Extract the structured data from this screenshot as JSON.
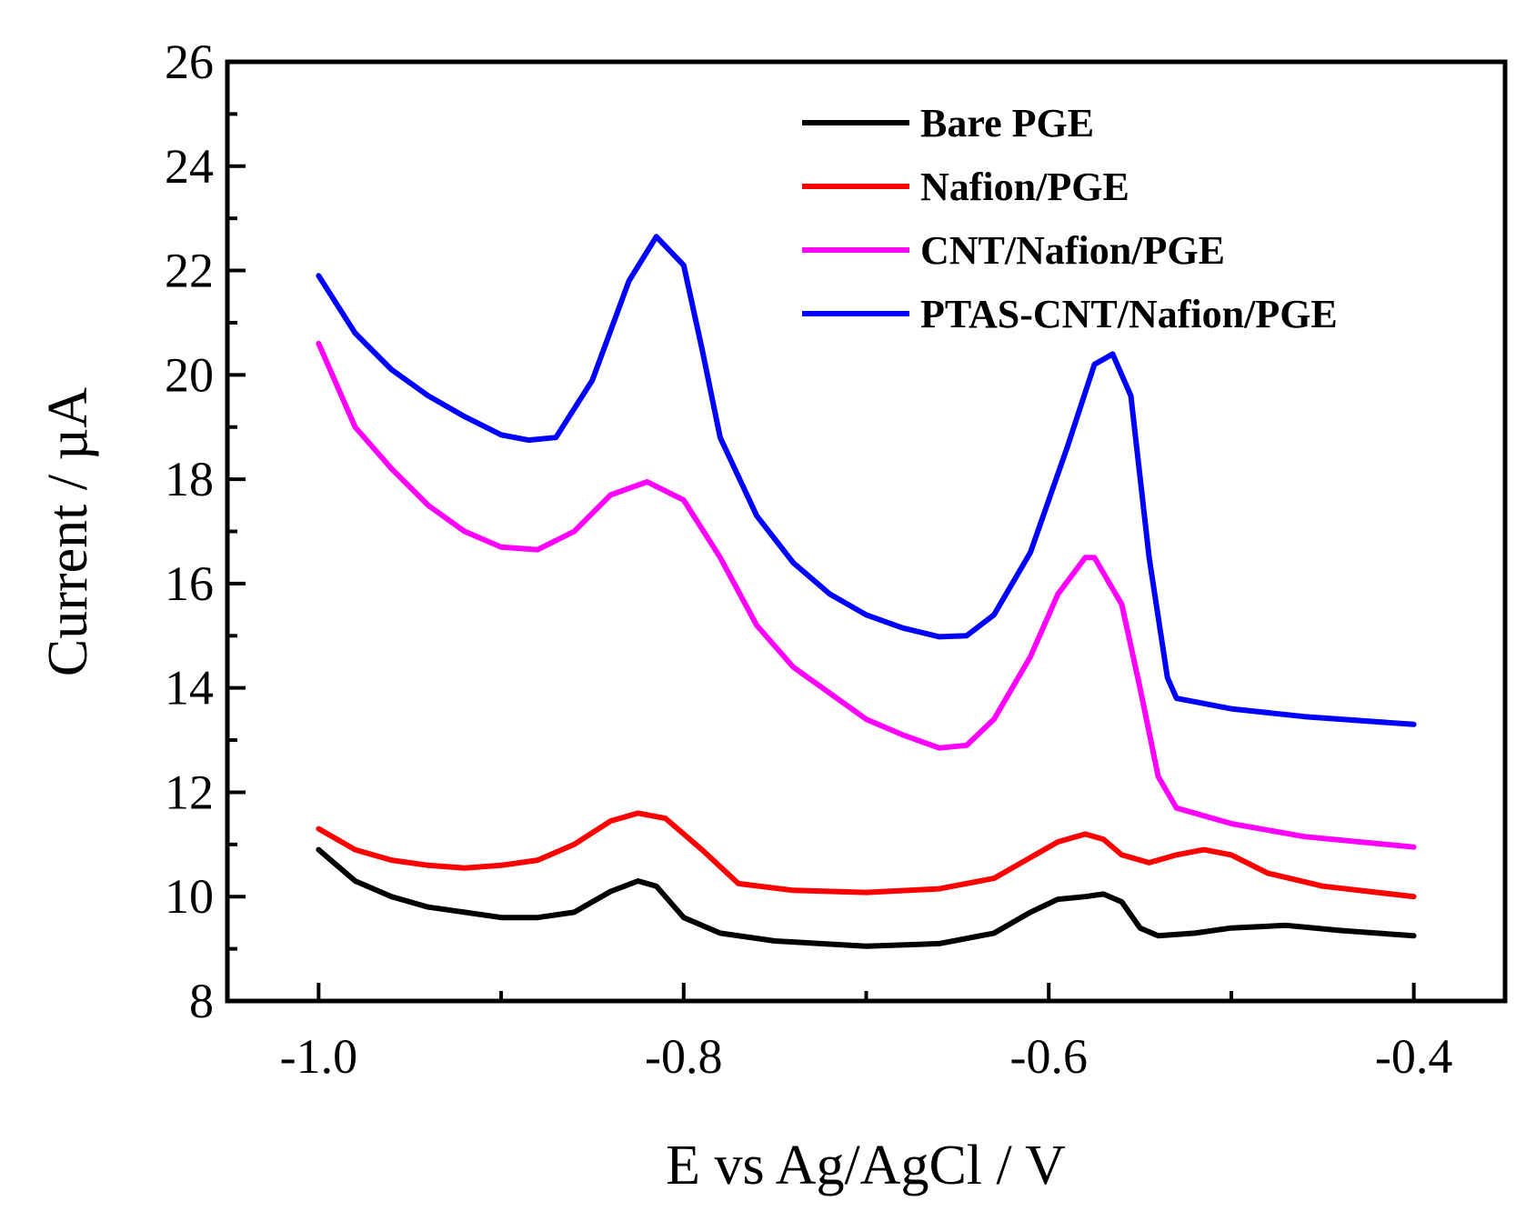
{
  "chart_data": {
    "type": "line",
    "title": "",
    "xlabel": "E vs Ag/AgCl / V",
    "ylabel": "Current / µA",
    "xlim": [
      -1.05,
      -0.35
    ],
    "ylim": [
      8,
      26
    ],
    "xticks": [
      -1.0,
      -0.8,
      -0.6,
      -0.4
    ],
    "xtick_labels": [
      "-1.0",
      "-0.8",
      "-0.6",
      "-0.4"
    ],
    "yticks": [
      8,
      10,
      12,
      14,
      16,
      18,
      20,
      22,
      24,
      26
    ],
    "ytick_labels": [
      "8",
      "10",
      "12",
      "14",
      "16",
      "18",
      "20",
      "22",
      "24",
      "26"
    ],
    "grid": false,
    "legend_position": "top-right",
    "series": [
      {
        "name": "Bare PGE",
        "color": "#000000",
        "x": [
          -1.0,
          -0.98,
          -0.96,
          -0.94,
          -0.92,
          -0.9,
          -0.88,
          -0.86,
          -0.84,
          -0.825,
          -0.815,
          -0.8,
          -0.78,
          -0.75,
          -0.7,
          -0.66,
          -0.63,
          -0.61,
          -0.595,
          -0.58,
          -0.57,
          -0.56,
          -0.55,
          -0.54,
          -0.52,
          -0.5,
          -0.47,
          -0.44,
          -0.4
        ],
        "values": [
          10.9,
          10.3,
          10.0,
          9.8,
          9.7,
          9.6,
          9.6,
          9.7,
          10.1,
          10.3,
          10.2,
          9.6,
          9.3,
          9.15,
          9.05,
          9.1,
          9.3,
          9.7,
          9.95,
          10.0,
          10.05,
          9.9,
          9.4,
          9.25,
          9.3,
          9.4,
          9.45,
          9.35,
          9.25
        ]
      },
      {
        "name": "Nafion/PGE",
        "color": "#ff0000",
        "x": [
          -1.0,
          -0.98,
          -0.96,
          -0.94,
          -0.92,
          -0.9,
          -0.88,
          -0.86,
          -0.84,
          -0.825,
          -0.81,
          -0.79,
          -0.77,
          -0.74,
          -0.7,
          -0.66,
          -0.63,
          -0.61,
          -0.595,
          -0.58,
          -0.57,
          -0.56,
          -0.545,
          -0.53,
          -0.515,
          -0.5,
          -0.48,
          -0.45,
          -0.4
        ],
        "values": [
          11.3,
          10.9,
          10.7,
          10.6,
          10.55,
          10.6,
          10.7,
          11.0,
          11.45,
          11.6,
          11.5,
          10.9,
          10.25,
          10.12,
          10.08,
          10.15,
          10.35,
          10.75,
          11.05,
          11.2,
          11.1,
          10.8,
          10.65,
          10.8,
          10.9,
          10.8,
          10.45,
          10.2,
          10.0
        ]
      },
      {
        "name": "CNT/Nafion/PGE",
        "color": "#ff00ff",
        "x": [
          -1.0,
          -0.98,
          -0.96,
          -0.94,
          -0.92,
          -0.9,
          -0.88,
          -0.86,
          -0.84,
          -0.82,
          -0.8,
          -0.78,
          -0.76,
          -0.74,
          -0.72,
          -0.7,
          -0.68,
          -0.66,
          -0.645,
          -0.63,
          -0.61,
          -0.595,
          -0.58,
          -0.575,
          -0.56,
          -0.55,
          -0.54,
          -0.53,
          -0.5,
          -0.46,
          -0.4
        ],
        "values": [
          20.6,
          19.0,
          18.2,
          17.5,
          17.0,
          16.7,
          16.65,
          17.0,
          17.7,
          17.95,
          17.6,
          16.5,
          15.2,
          14.4,
          13.9,
          13.4,
          13.1,
          12.85,
          12.9,
          13.4,
          14.6,
          15.8,
          16.5,
          16.5,
          15.6,
          14.0,
          12.3,
          11.7,
          11.4,
          11.15,
          10.95
        ]
      },
      {
        "name": "PTAS-CNT/Nafion/PGE",
        "color": "#0000ff",
        "x": [
          -1.0,
          -0.98,
          -0.96,
          -0.94,
          -0.92,
          -0.9,
          -0.885,
          -0.87,
          -0.85,
          -0.83,
          -0.815,
          -0.8,
          -0.79,
          -0.78,
          -0.76,
          -0.74,
          -0.72,
          -0.7,
          -0.68,
          -0.66,
          -0.645,
          -0.63,
          -0.61,
          -0.59,
          -0.575,
          -0.565,
          -0.555,
          -0.545,
          -0.535,
          -0.53,
          -0.5,
          -0.46,
          -0.4
        ],
        "values": [
          21.9,
          20.8,
          20.1,
          19.6,
          19.2,
          18.85,
          18.75,
          18.8,
          19.9,
          21.8,
          22.65,
          22.1,
          20.5,
          18.8,
          17.3,
          16.4,
          15.8,
          15.4,
          15.15,
          14.98,
          15.0,
          15.4,
          16.6,
          18.6,
          20.2,
          20.4,
          19.6,
          16.5,
          14.2,
          13.8,
          13.6,
          13.45,
          13.3
        ]
      }
    ]
  }
}
